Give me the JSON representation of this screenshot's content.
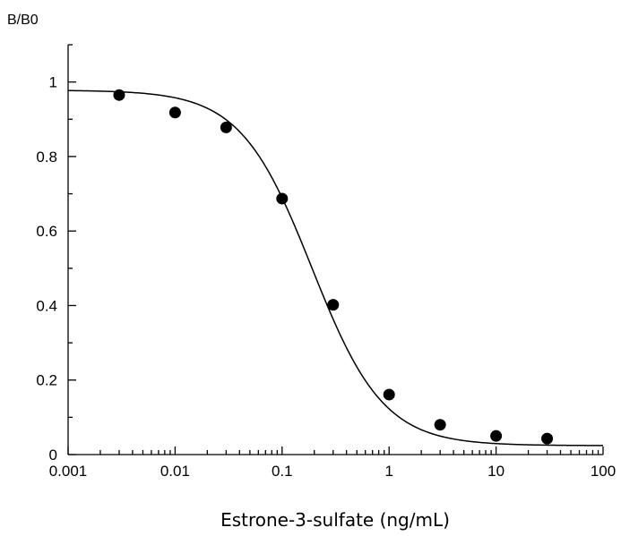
{
  "chart_data": {
    "type": "scatter",
    "xscale": "log",
    "xlim": [
      0.001,
      100
    ],
    "ylim": [
      0,
      1.1
    ],
    "xticks": [
      0.001,
      0.01,
      0.1,
      1,
      10,
      100
    ],
    "xtick_labels": [
      "0.001",
      "0.01",
      "0.1",
      "1",
      "10",
      "100"
    ],
    "yticks": [
      0,
      0.2,
      0.4,
      0.6,
      0.8,
      1
    ],
    "ytick_labels": [
      "0",
      "0.2",
      "0.4",
      "0.6",
      "0.8",
      "1"
    ],
    "xlabel": "Estrone-3-sulfate (ng/mL)",
    "ylabel": "B/B0",
    "grid": false,
    "legend": "none",
    "series": [
      {
        "style": "markers",
        "x": [
          0.003,
          0.01,
          0.03,
          0.1,
          0.3,
          1,
          3,
          10,
          30
        ],
        "y": [
          0.965,
          0.918,
          0.878,
          0.687,
          0.402,
          0.161,
          0.08,
          0.05,
          0.043
        ]
      },
      {
        "style": "line",
        "fit": "four-parameter logistic",
        "params": {
          "top": 0.978,
          "bottom": 0.024,
          "ec50": 0.19,
          "hill": 1.3
        }
      }
    ]
  }
}
